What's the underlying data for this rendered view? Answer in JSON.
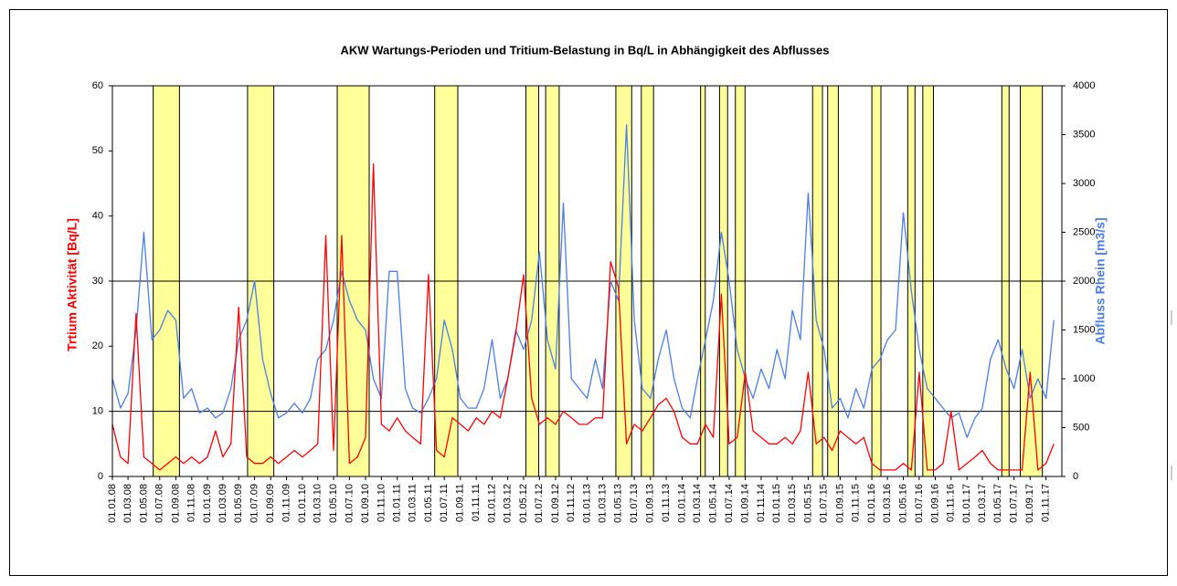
{
  "chart_data": {
    "type": "line",
    "title": "AKW  Wartungs-Perioden  und Tritium-Belastung  in  Bq/L  in  Abhängigkeit  des  Abflusses",
    "x": [
      "01.01.08",
      "01.02.08",
      "01.03.08",
      "01.04.08",
      "01.05.08",
      "01.06.08",
      "01.07.08",
      "01.08.08",
      "01.09.08",
      "01.10.08",
      "01.11.08",
      "01.12.08",
      "01.01.09",
      "01.02.09",
      "01.03.09",
      "01.04.09",
      "01.05.09",
      "01.06.09",
      "01.07.09",
      "01.08.09",
      "01.09.09",
      "01.10.09",
      "01.11.09",
      "01.12.09",
      "01.01.10",
      "01.02.10",
      "01.03.10",
      "01.04.10",
      "01.05.10",
      "01.06.10",
      "01.07.10",
      "01.08.10",
      "01.09.10",
      "01.10.10",
      "01.11.10",
      "01.12.10",
      "01.01.11",
      "01.02.11",
      "01.03.11",
      "01.04.11",
      "01.05.11",
      "01.06.11",
      "01.07.11",
      "01.08.11",
      "01.09.11",
      "01.10.11",
      "01.11.11",
      "01.12.11",
      "01.01.12",
      "01.02.12",
      "01.03.12",
      "01.04.12",
      "01.05.12",
      "01.06.12",
      "01.07.12",
      "01.08.12",
      "01.09.12",
      "01.10.12",
      "01.11.12",
      "01.12.12",
      "01.01.13",
      "01.02.13",
      "01.03.13",
      "01.04.13",
      "01.05.13",
      "01.06.13",
      "01.07.13",
      "01.08.13",
      "01.09.13",
      "01.10.13",
      "01.11.13",
      "01.12.13",
      "01.01.14",
      "01.02.14",
      "01.03.14",
      "01.04.14",
      "01.05.14",
      "01.06.14",
      "01.07.14",
      "01.08.14",
      "01.09.14",
      "01.10.14",
      "01.11.14",
      "01.12.14",
      "01.01.15",
      "01.02.15",
      "01.03.15",
      "01.04.15",
      "01.05.15",
      "01.06.15",
      "01.07.15",
      "01.08.15",
      "01.09.15",
      "01.10.15",
      "01.11.15",
      "01.12.15",
      "01.01.16",
      "01.02.16",
      "01.03.16",
      "01.04.16",
      "01.05.16",
      "01.06.16",
      "01.07.16",
      "01.08.16",
      "01.09.16",
      "01.10.16",
      "01.11.16",
      "01.12.16",
      "01.01.17",
      "01.02.17",
      "01.03.17",
      "01.04.17",
      "01.05.17",
      "01.06.17",
      "01.07.17",
      "01.08.17",
      "01.09.17",
      "01.10.17",
      "01.11.17",
      "01.12.17"
    ],
    "series": [
      {
        "name": "Trtium Aktivität [Bq/L]",
        "color": "#ff0000",
        "axis": "y",
        "values": [
          8,
          3,
          2,
          25,
          3,
          2,
          1,
          2,
          3,
          2,
          3,
          2,
          3,
          7,
          3,
          5,
          26,
          3,
          2,
          2,
          3,
          2,
          3,
          4,
          3,
          4,
          5,
          37,
          4,
          37,
          2,
          3,
          6,
          48,
          8,
          7,
          9,
          7,
          6,
          5,
          31,
          4,
          3,
          9,
          8,
          7,
          9,
          8,
          10,
          9,
          15,
          22,
          31,
          12,
          8,
          9,
          8,
          10,
          9,
          8,
          8,
          9,
          9,
          33,
          29,
          5,
          8,
          7,
          9,
          11,
          12,
          10,
          6,
          5,
          5,
          8,
          6,
          28,
          5,
          6,
          16,
          7,
          6,
          5,
          5,
          6,
          5,
          7,
          16,
          5,
          6,
          4,
          7,
          6,
          5,
          6,
          2,
          1,
          1,
          1,
          2,
          1,
          16,
          1,
          1,
          2,
          10,
          1,
          2,
          3,
          4,
          2,
          1,
          1,
          1,
          1,
          16,
          1,
          2,
          5
        ]
      },
      {
        "name": "Abfluss Rhein [m3/s]",
        "color": "#4a7ee8",
        "axis": "y2",
        "values": [
          1000,
          700,
          850,
          1500,
          2500,
          1400,
          1500,
          1700,
          1600,
          800,
          900,
          650,
          700,
          600,
          650,
          900,
          1400,
          1600,
          2000,
          1200,
          850,
          600,
          650,
          750,
          650,
          800,
          1200,
          1300,
          1600,
          2100,
          1800,
          1600,
          1500,
          1000,
          800,
          2100,
          2100,
          900,
          700,
          650,
          800,
          1000,
          1600,
          1300,
          800,
          700,
          700,
          900,
          1400,
          800,
          1000,
          1500,
          1300,
          1600,
          2300,
          1400,
          1100,
          2800,
          1000,
          900,
          800,
          1200,
          900,
          2000,
          1800,
          3600,
          1600,
          900,
          800,
          1200,
          1500,
          1000,
          700,
          600,
          1000,
          1400,
          1800,
          2500,
          2000,
          1300,
          1000,
          800,
          1100,
          900,
          1300,
          1000,
          1700,
          1400,
          2900,
          1600,
          1300,
          700,
          800,
          600,
          900,
          700,
          1100,
          1200,
          1400,
          1500,
          2700,
          1900,
          1300,
          900,
          800,
          700,
          600,
          650,
          400,
          600,
          700,
          1200,
          1400,
          1100,
          900,
          1300,
          800,
          1000,
          800,
          1600
        ]
      }
    ],
    "maintenance_periods": [
      {
        "start": "06.06.08",
        "end": "15.09.08"
      },
      {
        "start": "04.06.09",
        "end": "13.09.09"
      },
      {
        "start": "15.05.10",
        "end": "15.09.10"
      },
      {
        "start": "25.05.11",
        "end": "22.08.11"
      },
      {
        "start": "10.05.12",
        "end": "28.06.12"
      },
      {
        "start": "25.07.12",
        "end": "15.09.12"
      },
      {
        "start": "21.04.13",
        "end": "21.06.13"
      },
      {
        "start": "28.07.13",
        "end": "13.09.13"
      },
      {
        "start": "13.03.14",
        "end": "31.03.14"
      },
      {
        "start": "25.05.14",
        "end": "25.06.14"
      },
      {
        "start": "25.07.14",
        "end": "31.08.14"
      },
      {
        "start": "18.05.15",
        "end": "25.06.15"
      },
      {
        "start": "15.07.15",
        "end": "25.08.15"
      },
      {
        "start": "01.01.16",
        "end": "05.02.16"
      },
      {
        "start": "18.05.16",
        "end": "15.06.16"
      },
      {
        "start": "15.07.16",
        "end": "25.08.16"
      },
      {
        "start": "15.05.17",
        "end": "12.06.17"
      },
      {
        "start": "25.07.17",
        "end": "18.10.17"
      }
    ],
    "period_color": "#ffff99",
    "xlim": [
      "01.01.08",
      "01.01.18"
    ],
    "xticks": [
      "01.01.08",
      "01.03.08",
      "01.05.08",
      "01.07.08",
      "01.09.08",
      "01.11.08",
      "01.01.09",
      "01.03.09",
      "01.05.09",
      "01.07.09",
      "01.09.09",
      "01.11.09",
      "01.01.10",
      "01.03.10",
      "01.05.10",
      "01.07.10",
      "01.09.10",
      "01.11.10",
      "01.01.11",
      "01.03.11",
      "01.05.11",
      "01.07.11",
      "01.09.11",
      "01.11.11",
      "01.01.12",
      "01.03.12",
      "01.05.12",
      "01.07.12",
      "01.09.12",
      "01.11.12",
      "01.01.13",
      "01.03.13",
      "01.05.13",
      "01.07.13",
      "01.09.13",
      "01.11.13",
      "01.01.14",
      "01.03.14",
      "01.05.14",
      "01.07.14",
      "01.09.14",
      "01.11.14",
      "01.01.15",
      "01.03.15",
      "01.05.15",
      "01.07.15",
      "01.09.15",
      "01.11.15",
      "01.01.16",
      "01.03.16",
      "01.05.16",
      "01.07.16",
      "01.09.16",
      "01.11.16",
      "01.01.17",
      "01.03.17",
      "01.05.17",
      "01.07.17",
      "01.09.17",
      "01.11.17"
    ],
    "ylim": [
      0,
      60
    ],
    "yticks": [
      0,
      10,
      20,
      30,
      40,
      50,
      60
    ],
    "ygrid": [
      10,
      30
    ],
    "y2lim": [
      0,
      4000
    ],
    "y2ticks": [
      0,
      500,
      1000,
      1500,
      2000,
      2500,
      3000,
      3500,
      4000
    ]
  }
}
